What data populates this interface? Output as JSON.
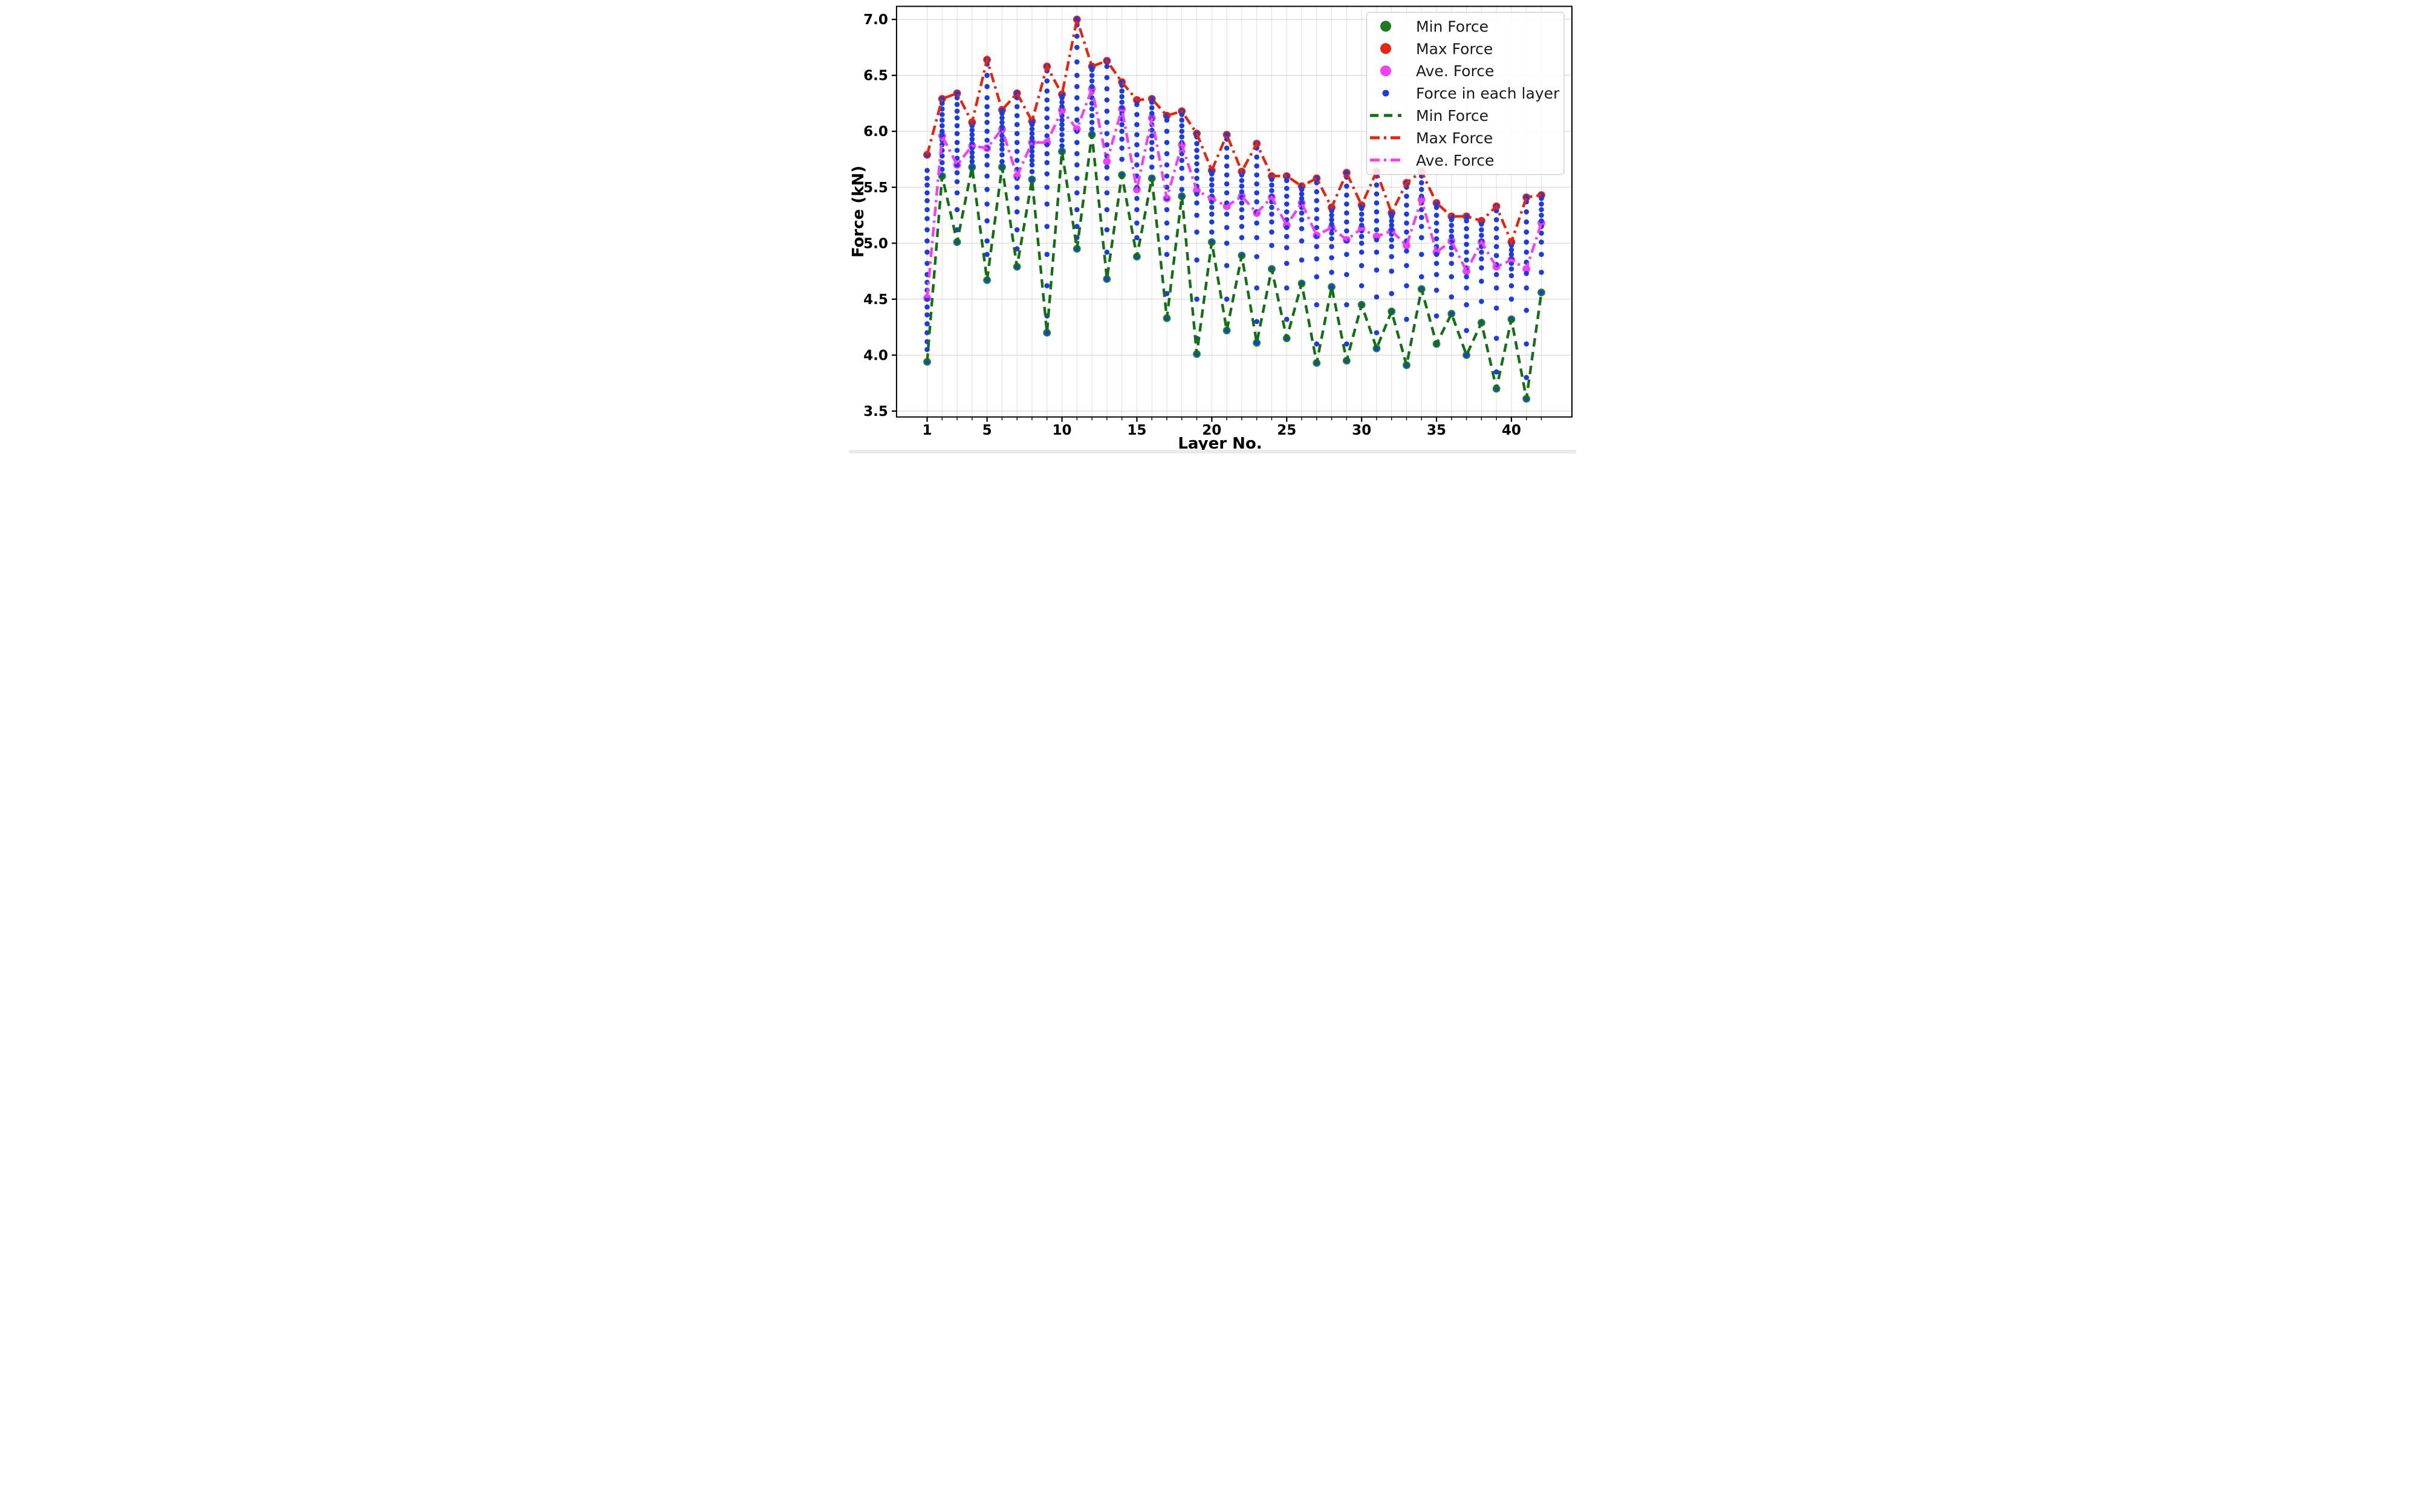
{
  "figure": {
    "xlabel": "Layer No.",
    "ylabel": "Force (kN)"
  },
  "legend": {
    "entries": [
      {
        "label": "Min Force",
        "kind": "dot",
        "color": "#1e7a1e",
        "size": 9
      },
      {
        "label": "Max Force",
        "kind": "dot",
        "color": "#e82414",
        "size": 9
      },
      {
        "label": "Ave. Force",
        "kind": "dot",
        "color": "#f63ef6",
        "size": 9
      },
      {
        "label": "Force in each layer",
        "kind": "dot",
        "color": "#1d3ce0",
        "size": 5.5
      },
      {
        "label": "Min Force",
        "kind": "line",
        "color": "#127012",
        "dash": "14 9"
      },
      {
        "label": "Max Force",
        "kind": "line",
        "color": "#e8240f",
        "dash": "16 7 4 7"
      },
      {
        "label": "Ave. Force",
        "kind": "line",
        "color": "#f63ef6",
        "dash": "16 7 4 7"
      }
    ]
  },
  "chart_data": {
    "type": "scatter",
    "title": "",
    "xlabel": "Layer No.",
    "ylabel": "Force (kN)",
    "xlim": [
      -1,
      44
    ],
    "ylim": [
      3.45,
      7.12
    ],
    "x_major_ticks": [
      1,
      5,
      10,
      15,
      20,
      25,
      30,
      35,
      40
    ],
    "y_ticks": [
      3.5,
      4.0,
      4.5,
      5.0,
      5.5,
      6.0,
      6.5,
      7.0
    ],
    "grid": true,
    "legend_position": "upper right",
    "layers": [
      1,
      2,
      3,
      4,
      5,
      6,
      7,
      8,
      9,
      10,
      11,
      12,
      13,
      14,
      15,
      16,
      17,
      18,
      19,
      20,
      21,
      22,
      23,
      24,
      25,
      26,
      27,
      28,
      29,
      30,
      31,
      32,
      33,
      34,
      35,
      36,
      37,
      38,
      39,
      40,
      41,
      42
    ],
    "series": [
      {
        "name": "Max Force",
        "style": "scatter+line",
        "color": "#e8240f",
        "linestyle": "dashdot",
        "values": [
          5.79,
          6.29,
          6.34,
          6.08,
          6.64,
          6.19,
          6.34,
          6.09,
          6.58,
          6.33,
          7.0,
          6.58,
          6.63,
          6.44,
          6.28,
          6.29,
          6.14,
          6.18,
          5.98,
          5.65,
          5.97,
          5.64,
          5.89,
          5.6,
          5.6,
          5.51,
          5.58,
          5.32,
          5.63,
          5.34,
          5.64,
          5.27,
          5.54,
          5.64,
          5.36,
          5.24,
          5.24,
          5.2,
          5.33,
          5.01,
          5.41,
          5.43
        ]
      },
      {
        "name": "Min Force",
        "style": "scatter+line",
        "color": "#127012",
        "linestyle": "dashed",
        "values": [
          3.94,
          5.6,
          5.01,
          5.68,
          4.67,
          5.68,
          4.79,
          5.57,
          4.2,
          5.82,
          4.95,
          5.97,
          4.68,
          5.61,
          4.88,
          5.58,
          4.33,
          5.42,
          4.01,
          5.01,
          4.22,
          4.89,
          4.11,
          4.77,
          4.15,
          4.64,
          3.93,
          4.61,
          3.95,
          4.45,
          4.06,
          4.39,
          3.91,
          4.59,
          4.1,
          4.37,
          4.0,
          4.29,
          3.7,
          4.32,
          3.61,
          4.56
        ]
      },
      {
        "name": "Ave. Force",
        "style": "scatter+line",
        "color": "#f63ef6",
        "linestyle": "dashdot",
        "values": [
          4.51,
          5.96,
          5.7,
          5.87,
          5.85,
          6.02,
          5.6,
          5.9,
          5.9,
          6.19,
          6.02,
          6.38,
          5.73,
          6.2,
          5.48,
          6.12,
          5.4,
          5.88,
          5.47,
          5.4,
          5.33,
          5.42,
          5.27,
          5.41,
          5.16,
          5.36,
          5.07,
          5.14,
          5.03,
          5.13,
          5.06,
          5.11,
          4.98,
          5.39,
          4.92,
          5.02,
          4.75,
          5.01,
          4.79,
          4.85,
          4.77,
          5.18
        ]
      },
      {
        "name": "Force in each layer",
        "style": "scatter",
        "color": "#1d3ce0",
        "points_per_layer": [
          [
            5.79,
            5.65,
            5.58,
            5.52,
            5.45,
            5.38,
            5.3,
            5.22,
            5.12,
            5.02,
            4.92,
            4.82,
            4.72,
            4.65,
            4.58,
            4.5,
            4.43,
            4.36,
            4.28,
            4.2,
            4.12,
            4.05,
            3.94
          ],
          [
            6.29,
            6.25,
            6.2,
            6.15,
            6.1,
            6.05,
            6.0,
            5.96,
            5.92,
            5.88,
            5.83,
            5.78,
            5.72,
            5.66,
            5.6
          ],
          [
            6.34,
            6.3,
            6.24,
            6.18,
            6.12,
            6.05,
            5.98,
            5.9,
            5.83,
            5.76,
            5.7,
            5.63,
            5.55,
            5.45,
            5.3,
            5.12,
            5.01
          ],
          [
            6.08,
            6.05,
            6.01,
            5.97,
            5.93,
            5.89,
            5.85,
            5.81,
            5.77,
            5.73,
            5.68
          ],
          [
            6.64,
            6.6,
            6.5,
            6.4,
            6.3,
            6.22,
            6.15,
            6.08,
            6.0,
            5.92,
            5.85,
            5.78,
            5.7,
            5.6,
            5.48,
            5.35,
            5.2,
            5.02,
            4.9,
            4.67
          ],
          [
            6.19,
            6.16,
            6.12,
            6.08,
            6.04,
            6.0,
            5.96,
            5.92,
            5.88,
            5.84,
            5.79,
            5.73,
            5.68
          ],
          [
            6.34,
            6.3,
            6.22,
            6.14,
            6.06,
            5.98,
            5.9,
            5.82,
            5.74,
            5.66,
            5.58,
            5.5,
            5.4,
            5.28,
            5.12,
            4.95,
            4.79
          ],
          [
            6.09,
            6.06,
            6.02,
            5.98,
            5.94,
            5.9,
            5.86,
            5.82,
            5.78,
            5.74,
            5.7,
            5.64,
            5.57
          ],
          [
            6.58,
            6.54,
            6.45,
            6.36,
            6.28,
            6.2,
            6.12,
            6.04,
            5.96,
            5.88,
            5.8,
            5.72,
            5.62,
            5.5,
            5.35,
            5.15,
            4.9,
            4.62,
            4.35,
            4.2
          ],
          [
            6.33,
            6.3,
            6.26,
            6.22,
            6.18,
            6.14,
            6.1,
            6.06,
            6.02,
            5.97,
            5.92,
            5.87,
            5.82
          ],
          [
            7.0,
            6.95,
            6.85,
            6.75,
            6.62,
            6.5,
            6.4,
            6.3,
            6.2,
            6.1,
            6.0,
            5.9,
            5.8,
            5.7,
            5.58,
            5.45,
            5.3,
            5.15,
            5.05,
            4.95
          ],
          [
            6.58,
            6.55,
            6.5,
            6.45,
            6.4,
            6.35,
            6.3,
            6.25,
            6.2,
            6.14,
            6.08,
            6.02,
            5.97
          ],
          [
            6.63,
            6.58,
            6.48,
            6.38,
            6.28,
            6.18,
            6.08,
            5.98,
            5.88,
            5.78,
            5.68,
            5.58,
            5.45,
            5.3,
            5.12,
            4.92,
            4.68
          ],
          [
            6.44,
            6.41,
            6.36,
            6.31,
            6.26,
            6.21,
            6.16,
            6.11,
            6.06,
            6.0,
            5.93,
            5.85,
            5.75,
            5.61
          ],
          [
            6.28,
            6.24,
            6.15,
            6.06,
            5.97,
            5.88,
            5.79,
            5.7,
            5.6,
            5.5,
            5.4,
            5.3,
            5.18,
            5.05,
            4.88
          ],
          [
            6.29,
            6.26,
            6.21,
            6.16,
            6.11,
            6.06,
            6.01,
            5.96,
            5.9,
            5.84,
            5.77,
            5.68,
            5.58
          ],
          [
            6.14,
            6.1,
            6.0,
            5.9,
            5.8,
            5.7,
            5.6,
            5.5,
            5.4,
            5.3,
            5.18,
            5.05,
            4.9,
            4.55,
            4.33
          ],
          [
            6.18,
            6.15,
            6.1,
            6.05,
            6.0,
            5.95,
            5.9,
            5.85,
            5.8,
            5.74,
            5.67,
            5.58,
            5.48,
            5.42
          ],
          [
            5.98,
            5.95,
            5.89,
            5.83,
            5.77,
            5.71,
            5.65,
            5.58,
            5.51,
            5.44,
            5.36,
            5.25,
            5.1,
            4.85,
            4.5,
            4.15,
            4.01
          ],
          [
            5.65,
            5.62,
            5.57,
            5.52,
            5.47,
            5.42,
            5.37,
            5.32,
            5.26,
            5.19,
            5.1,
            5.01
          ],
          [
            5.97,
            5.93,
            5.85,
            5.77,
            5.69,
            5.61,
            5.53,
            5.45,
            5.36,
            5.26,
            5.14,
            5.0,
            4.8,
            4.5,
            4.22
          ],
          [
            5.64,
            5.61,
            5.56,
            5.51,
            5.46,
            5.41,
            5.36,
            5.3,
            5.23,
            5.15,
            5.05,
            4.89
          ],
          [
            5.89,
            5.85,
            5.77,
            5.69,
            5.61,
            5.53,
            5.45,
            5.37,
            5.28,
            5.18,
            5.05,
            4.88,
            4.6,
            4.3,
            4.11
          ],
          [
            5.6,
            5.57,
            5.52,
            5.47,
            5.42,
            5.37,
            5.32,
            5.26,
            5.19,
            5.1,
            4.98,
            4.77
          ],
          [
            5.6,
            5.56,
            5.49,
            5.42,
            5.35,
            5.28,
            5.21,
            5.14,
            5.06,
            4.96,
            4.82,
            4.6,
            4.32,
            4.15
          ],
          [
            5.51,
            5.48,
            5.44,
            5.4,
            5.36,
            5.32,
            5.27,
            5.21,
            5.13,
            5.02,
            4.85,
            4.64
          ],
          [
            5.58,
            5.54,
            5.46,
            5.38,
            5.3,
            5.22,
            5.14,
            5.06,
            4.97,
            4.86,
            4.7,
            4.45,
            4.1,
            3.93
          ],
          [
            5.32,
            5.29,
            5.25,
            5.21,
            5.17,
            5.13,
            5.09,
            5.04,
            4.97,
            4.87,
            4.74,
            4.61
          ],
          [
            5.63,
            5.59,
            5.51,
            5.43,
            5.35,
            5.27,
            5.19,
            5.11,
            5.02,
            4.9,
            4.72,
            4.45,
            4.1,
            3.95
          ],
          [
            5.34,
            5.31,
            5.26,
            5.21,
            5.16,
            5.11,
            5.06,
            5.0,
            4.92,
            4.8,
            4.62,
            4.45
          ],
          [
            5.64,
            5.6,
            5.52,
            5.44,
            5.36,
            5.28,
            5.2,
            5.12,
            5.03,
            4.92,
            4.76,
            4.52,
            4.2,
            4.06
          ],
          [
            5.27,
            5.24,
            5.2,
            5.16,
            5.12,
            5.08,
            5.03,
            4.97,
            4.88,
            4.75,
            4.55,
            4.39
          ],
          [
            5.54,
            5.5,
            5.42,
            5.34,
            5.26,
            5.18,
            5.1,
            5.02,
            4.93,
            4.8,
            4.62,
            4.32,
            3.91
          ],
          [
            5.64,
            5.6,
            5.54,
            5.48,
            5.42,
            5.36,
            5.3,
            5.23,
            5.15,
            5.05,
            4.9,
            4.7,
            4.59
          ],
          [
            5.36,
            5.32,
            5.25,
            5.18,
            5.11,
            5.04,
            4.97,
            4.9,
            4.82,
            4.72,
            4.58,
            4.35,
            4.1
          ],
          [
            5.24,
            5.21,
            5.16,
            5.11,
            5.06,
            5.01,
            4.96,
            4.9,
            4.82,
            4.7,
            4.52,
            4.37
          ],
          [
            5.24,
            5.2,
            5.13,
            5.06,
            4.99,
            4.92,
            4.85,
            4.78,
            4.7,
            4.6,
            4.45,
            4.22,
            4.0
          ],
          [
            5.2,
            5.17,
            5.12,
            5.07,
            5.02,
            4.97,
            4.92,
            4.86,
            4.78,
            4.66,
            4.48,
            4.29
          ],
          [
            5.33,
            5.29,
            5.21,
            5.13,
            5.05,
            4.97,
            4.89,
            4.81,
            4.72,
            4.6,
            4.42,
            4.15,
            3.85,
            3.7
          ],
          [
            5.01,
            4.98,
            4.94,
            4.9,
            4.86,
            4.82,
            4.77,
            4.71,
            4.62,
            4.5,
            4.32
          ],
          [
            5.41,
            5.37,
            5.28,
            5.19,
            5.1,
            5.01,
            4.92,
            4.83,
            4.73,
            4.6,
            4.4,
            4.1,
            3.8,
            3.61
          ],
          [
            5.43,
            5.4,
            5.35,
            5.3,
            5.25,
            5.2,
            5.15,
            5.09,
            5.01,
            4.9,
            4.74,
            4.56
          ]
        ]
      }
    ]
  },
  "style": {
    "grid_color_v": "#dadada",
    "grid_color_h": "#cfcfcf",
    "spine_color": "#000000",
    "legend_bg": "rgba(255,255,255,0.85)",
    "legend_border": "#c9c9c9",
    "footer_strip": "#eaeaea"
  }
}
